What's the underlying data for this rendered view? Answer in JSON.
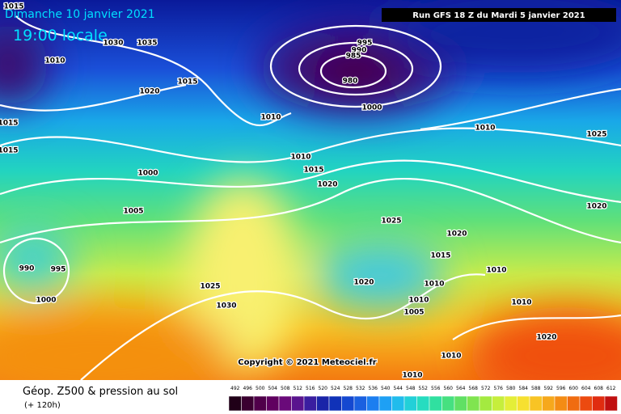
{
  "header": {
    "date": "Dimanche 10 janvier 2021",
    "time": "19:00 locale",
    "run": "Run GFS 18 Z du Mardi 5 janvier 2021"
  },
  "copyright": "Copyright © 2021 Meteociel.fr",
  "footer": {
    "title": "Géop. Z500 & pression au sol",
    "lead": "(+ 120h)"
  },
  "scale": {
    "labels": [
      "492",
      "496",
      "500",
      "504",
      "508",
      "512",
      "516",
      "520",
      "524",
      "528",
      "532",
      "536",
      "540",
      "544",
      "548",
      "552",
      "556",
      "560",
      "564",
      "568",
      "572",
      "576",
      "580",
      "584",
      "588",
      "592",
      "596",
      "600",
      "604",
      "608",
      "612"
    ]
  },
  "isobar_labels": [
    "1015",
    "1030",
    "1035",
    "1010",
    "1015",
    "1020",
    "995",
    "990",
    "985",
    "980",
    "1000",
    "1010",
    "1010",
    "1025",
    "1015",
    "1015",
    "1000",
    "1010",
    "1015",
    "1020",
    "1005",
    "1025",
    "1020",
    "1020",
    "1015",
    "990",
    "995",
    "1010",
    "1020",
    "1010",
    "1025",
    "1000",
    "1010",
    "1010",
    "1005",
    "1030",
    "1020",
    "1010",
    "1010"
  ]
}
